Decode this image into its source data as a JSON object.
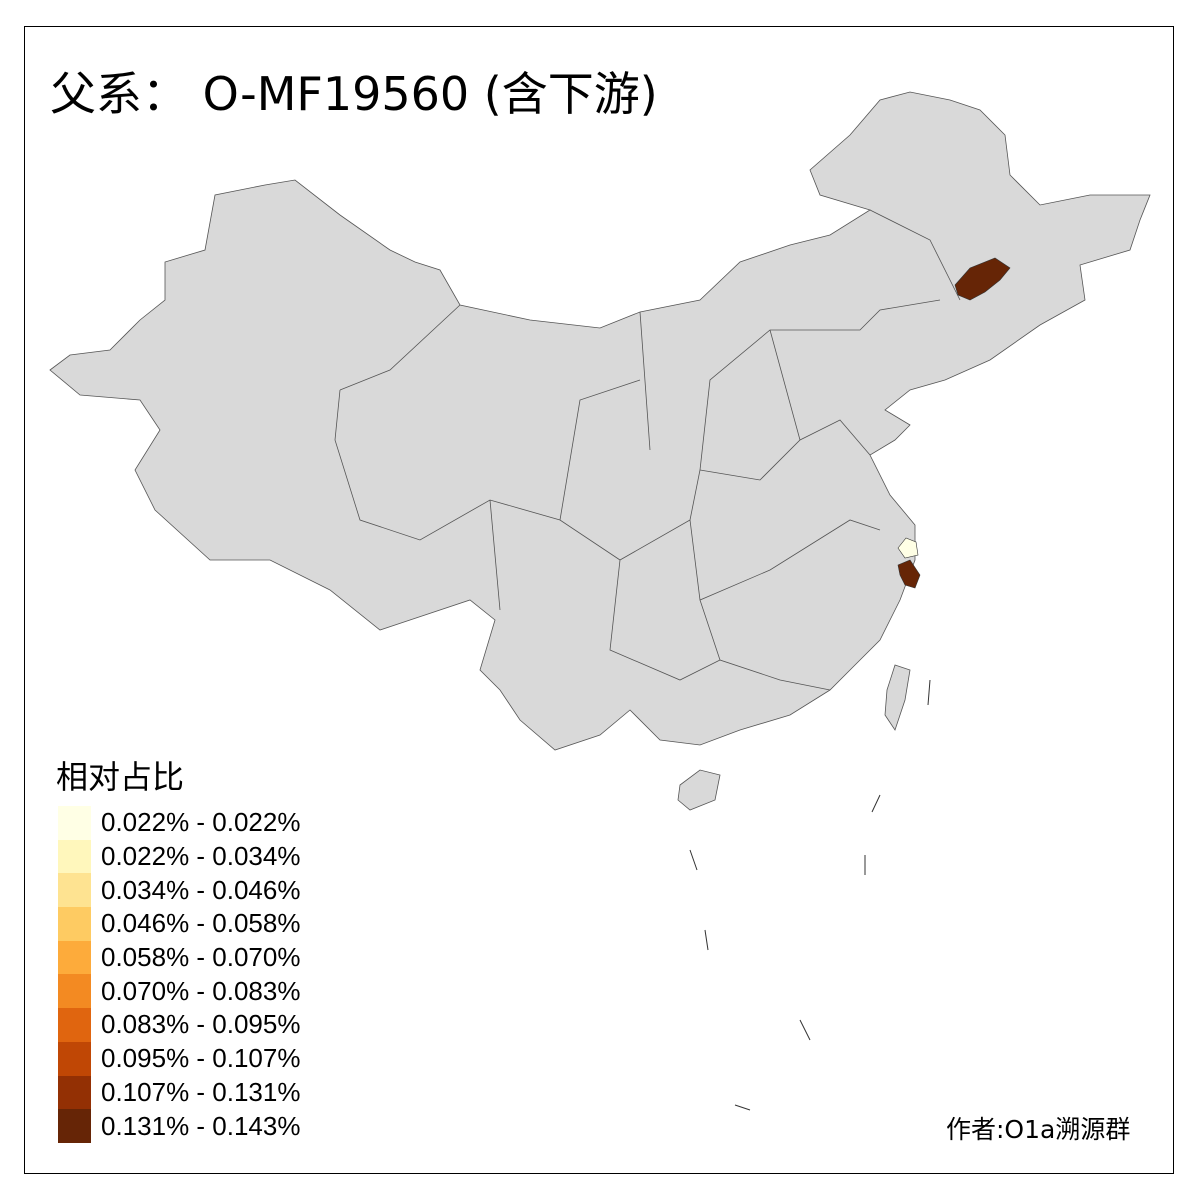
{
  "title": "父系： O-MF19560 (含下游)",
  "legend": {
    "title": "相对占比",
    "items": [
      {
        "label": "0.022% - 0.022%",
        "color": "#FFFFE5"
      },
      {
        "label": "0.022% - 0.034%",
        "color": "#FFF7BC"
      },
      {
        "label": "0.034% - 0.046%",
        "color": "#FEE391"
      },
      {
        "label": "0.046% - 0.058%",
        "color": "#FECB62"
      },
      {
        "label": "0.058% - 0.070%",
        "color": "#FDAB3B"
      },
      {
        "label": "0.070% - 0.083%",
        "color": "#F38A22"
      },
      {
        "label": "0.083% - 0.095%",
        "color": "#E0650F"
      },
      {
        "label": "0.095% - 0.107%",
        "color": "#C04705"
      },
      {
        "label": "0.107% - 0.131%",
        "color": "#933004"
      },
      {
        "label": "0.131% - 0.143%",
        "color": "#662506"
      }
    ]
  },
  "map": {
    "base_color": "#D9D9D9",
    "highlighted": [
      {
        "region": "northeast-city",
        "color": "#662506"
      },
      {
        "region": "shanghai-area",
        "color": "#FFFFE5"
      },
      {
        "region": "zhejiang-city",
        "color": "#662506"
      }
    ]
  },
  "credit": "作者:O1a溯源群"
}
